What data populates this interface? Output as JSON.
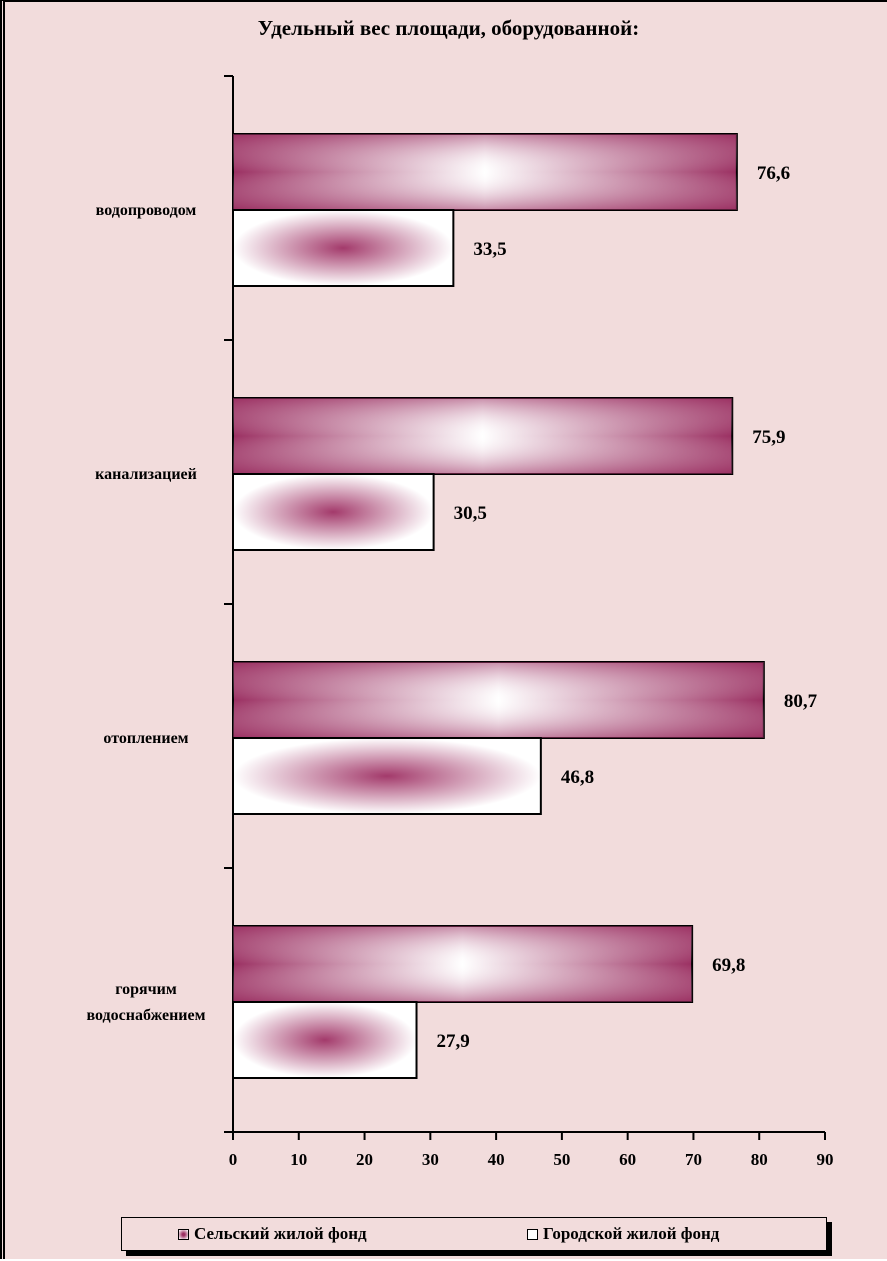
{
  "chart_data": {
    "type": "bar",
    "orientation": "horizontal",
    "title": "Удельный вес площади, оборудованной:",
    "categories": [
      "водопроводом",
      "канализацией",
      "отоплением",
      "горячим водоснабжением"
    ],
    "category_lines": [
      [
        "водопроводом"
      ],
      [
        "канализацией"
      ],
      [
        "отоплением"
      ],
      [
        "горячим",
        "водоснабжением"
      ]
    ],
    "series": [
      {
        "name": "Сельский жилой фонд",
        "values": [
          76.6,
          75.9,
          80.7,
          69.8
        ]
      },
      {
        "name": "Городской жилой фонд",
        "values": [
          33.5,
          30.5,
          46.8,
          27.9
        ]
      }
    ],
    "data_labels": [
      [
        "76,6",
        "75,9",
        "80,7",
        "69,8"
      ],
      [
        "33,5",
        "30,5",
        "46,8",
        "27,9"
      ]
    ],
    "xlim": [
      0,
      90
    ],
    "x_ticks": [
      0,
      10,
      20,
      30,
      40,
      50,
      60,
      70,
      80,
      90
    ],
    "xlabel": "",
    "ylabel": "",
    "grid": false,
    "legend": "bottom",
    "colors": {
      "rural": "#9b3062",
      "urban_center": "#a33a6b",
      "background": "#f2dcdc",
      "bar_highlight": "#ffffff"
    }
  }
}
